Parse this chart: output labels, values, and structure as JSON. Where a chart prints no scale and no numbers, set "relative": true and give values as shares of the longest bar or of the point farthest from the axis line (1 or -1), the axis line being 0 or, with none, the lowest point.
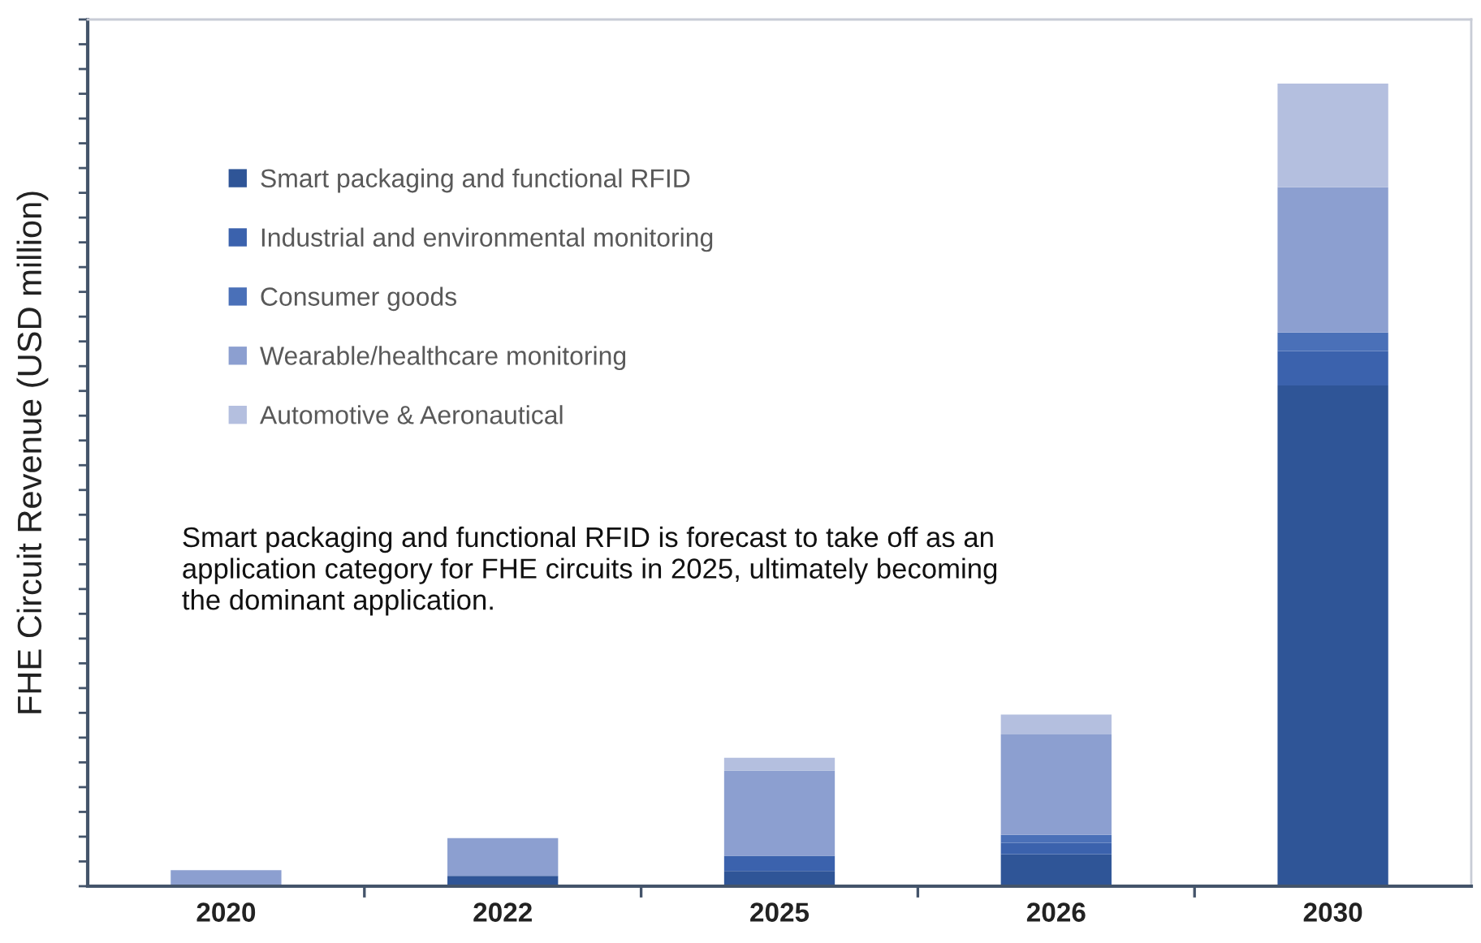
{
  "chart_data": {
    "type": "bar",
    "ylabel": "FHE Circuit Revenue (USD million)",
    "categories": [
      "2020",
      "2022",
      "2025",
      "2026",
      "2030"
    ],
    "stacked": true,
    "relative": true,
    "legend": "top left",
    "series": [
      {
        "name": "Smart packaging and functional RFID",
        "color": "#2f5597",
        "values": [
          0,
          0.013,
          0.019,
          0.04,
          0.624
        ]
      },
      {
        "name": "Industrial and environmental monitoring",
        "color": "#3b62ad",
        "values": [
          0,
          0,
          0.019,
          0.014,
          0.043
        ]
      },
      {
        "name": "Consumer goods",
        "color": "#4a70b8",
        "values": [
          0,
          0,
          0,
          0.01,
          0.023
        ]
      },
      {
        "name": "Wearable/healthcare monitoring",
        "color": "#8c9fd0",
        "values": [
          0.02,
          0.047,
          0.106,
          0.125,
          0.181
        ]
      },
      {
        "name": "Automotive & Aeronautical",
        "color": "#b4bfdf",
        "values": [
          0,
          0,
          0.016,
          0.025,
          0.129
        ]
      }
    ],
    "annotations": [
      "Smart packaging and functional RFID is forecast to take off as an\napplication category for FHE circuits in 2025, ultimately becoming\nthe dominant application."
    ]
  }
}
